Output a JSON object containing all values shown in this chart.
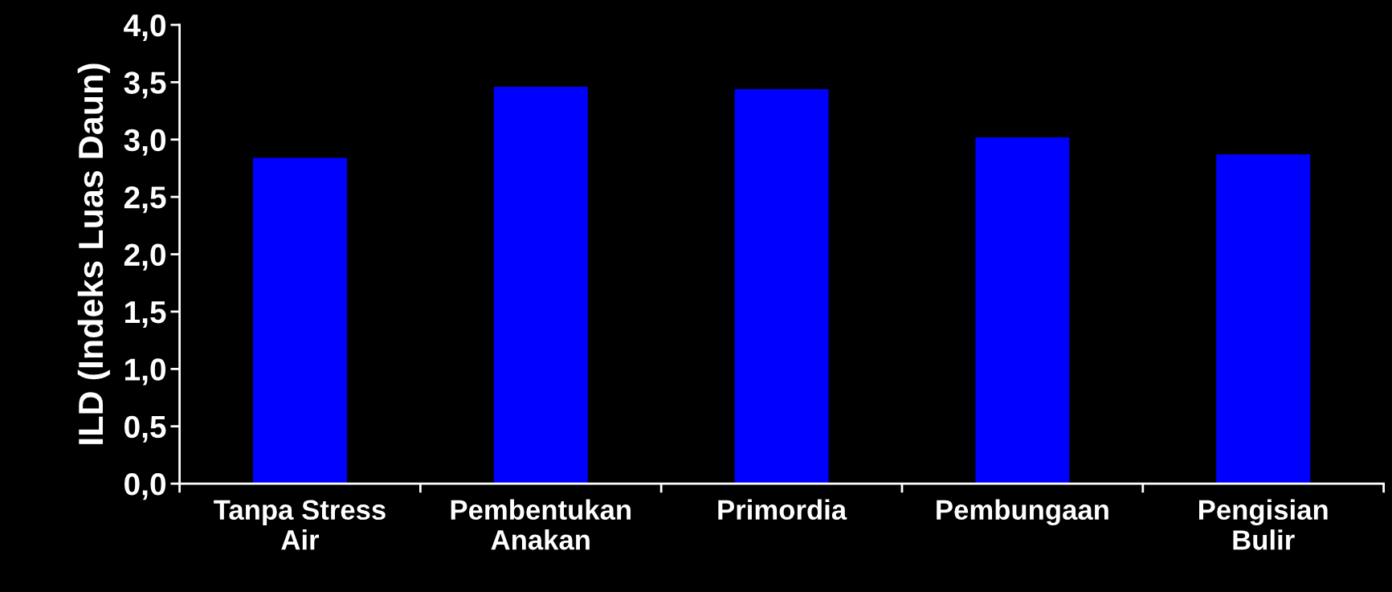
{
  "chart_data": {
    "type": "bar",
    "ylabel": "ILD (Indeks Luas Daun)",
    "categories": [
      "Tanpa Stress\nAir",
      "Pembentukan\nAnakan",
      "Primordia",
      "Pembungaan",
      "Pengisian\nBulir"
    ],
    "values": [
      2.84,
      3.46,
      3.44,
      3.02,
      2.87
    ],
    "color": "#0000ff",
    "ylim": [
      0,
      4
    ],
    "yticks": [
      {
        "value": 0,
        "label": "0,0"
      },
      {
        "value": 0.5,
        "label": "0,5"
      },
      {
        "value": 1,
        "label": "1,0"
      },
      {
        "value": 1.5,
        "label": "1,5"
      },
      {
        "value": 2,
        "label": "2,0"
      },
      {
        "value": 2.5,
        "label": "2,5"
      },
      {
        "value": 3,
        "label": "3,0"
      },
      {
        "value": 3.5,
        "label": "3,5"
      },
      {
        "value": 4,
        "label": "4,0"
      }
    ],
    "grid": false,
    "legend": false
  }
}
